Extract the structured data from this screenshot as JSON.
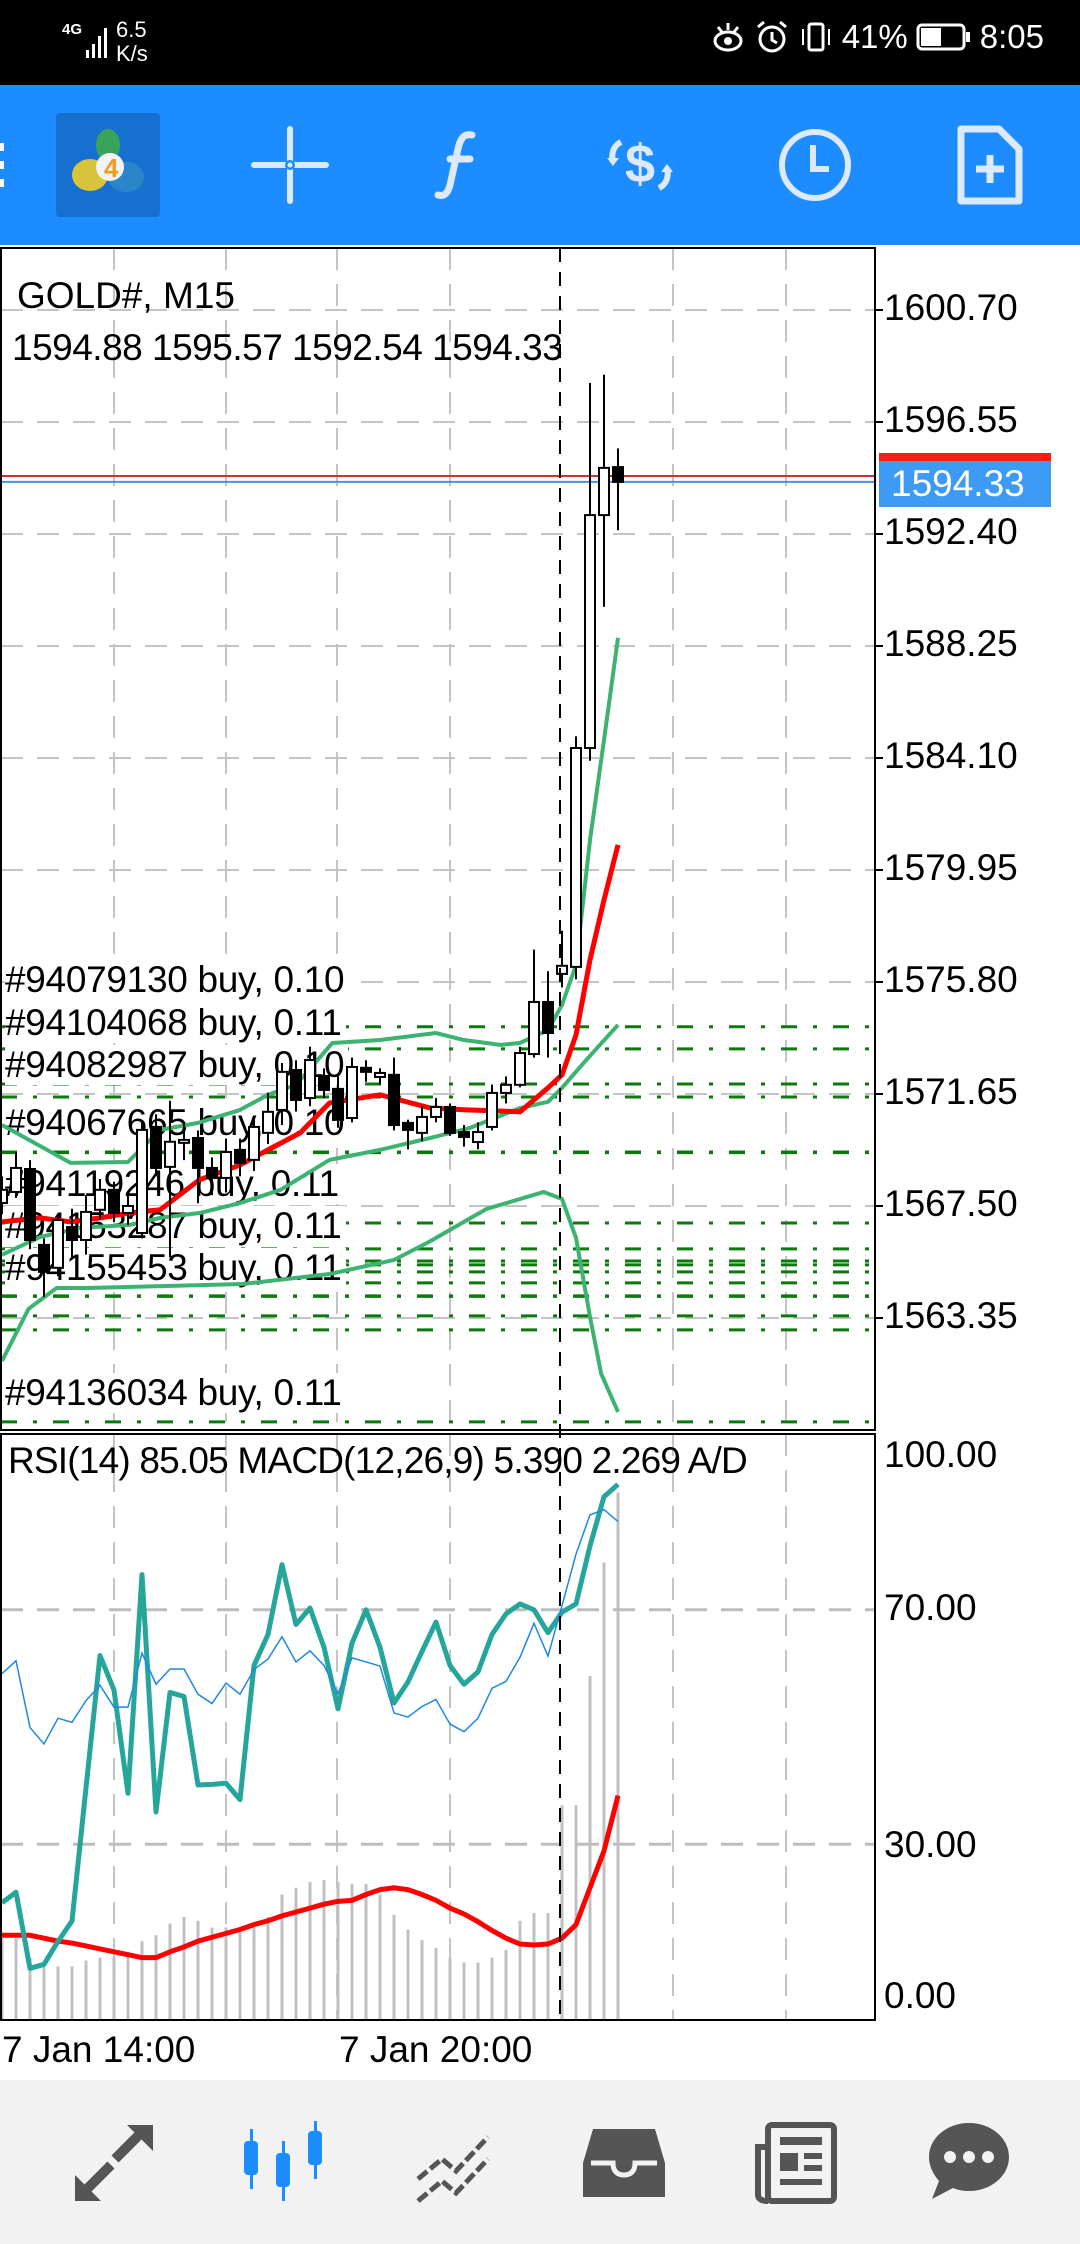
{
  "status_bar": {
    "network": "4G",
    "speed_value": "6.5",
    "speed_unit": "K/s",
    "battery": "41%",
    "time": "8:05"
  },
  "toolbar": {
    "icons": [
      "menu-icon",
      "mt4-logo",
      "crosshair-icon",
      "indicators-icon",
      "trade-icon",
      "timeframe-clock-icon",
      "new-object-icon"
    ]
  },
  "chart": {
    "symbol_title": "GOLD#, M15",
    "ohlc_line": "1594.88 1595.57 1592.54 1594.33",
    "current_price": "1594.33",
    "price_ticks": [
      "1600.70",
      "1596.55",
      "1592.40",
      "1588.25",
      "1584.10",
      "1579.95",
      "1575.80",
      "1571.65",
      "1567.50",
      "1563.35"
    ],
    "order_labels": [
      "#94079130 buy, 0.10",
      "#94104068 buy, 0.11",
      "#94082987 buy, 0.10",
      "#94067665 buy, 0.10",
      "#94119246 buy, 0.11",
      "#94153287 buy, 0.11",
      "#94155453 buy, 0.11",
      "#94136034 buy, 0.11"
    ],
    "indicator_header": "RSI(14) 85.05 MACD(12,26,9) 5.390 2.269 A/D",
    "indicator_ticks": [
      "100.00",
      "70.00",
      "30.00",
      "0.00"
    ],
    "time_labels": [
      "7 Jan 14:00",
      "7 Jan 20:00"
    ]
  },
  "chart_data": {
    "type": "candlestick",
    "title": "GOLD#, M15",
    "ylim": [
      1559.5,
      1601.5
    ],
    "price_ticks": [
      1600.7,
      1596.55,
      1592.4,
      1588.25,
      1584.1,
      1579.95,
      1575.8,
      1571.65,
      1567.5,
      1563.35
    ],
    "bid": 1594.33,
    "ask": 1594.55,
    "candles_ohlc": [
      [
        1567.61,
        1568.6,
        1567.2,
        1568.1
      ],
      [
        1568.02,
        1569.5,
        1567.8,
        1568.91
      ],
      [
        1568.87,
        1569.2,
        1565.9,
        1566.24
      ],
      [
        1566.06,
        1566.3,
        1564.13,
        1565.06
      ],
      [
        1565.21,
        1567.2,
        1564.9,
        1566.98
      ],
      [
        1566.72,
        1567.4,
        1565.6,
        1566.24
      ],
      [
        1566.24,
        1567.9,
        1565.7,
        1567.28
      ],
      [
        1567.36,
        1568.5,
        1567.0,
        1568.1
      ],
      [
        1568.1,
        1568.4,
        1566.9,
        1567.24
      ],
      [
        1567.24,
        1567.9,
        1566.8,
        1567.5
      ],
      [
        1566.5,
        1570.6,
        1566.3,
        1570.32
      ],
      [
        1570.43,
        1570.9,
        1568.6,
        1568.91
      ],
      [
        1568.95,
        1571.4,
        1565.6,
        1569.88
      ],
      [
        1569.84,
        1570.6,
        1569.2,
        1569.95
      ],
      [
        1570.02,
        1570.3,
        1567.6,
        1568.91
      ],
      [
        1568.91,
        1569.3,
        1567.9,
        1568.54
      ],
      [
        1568.54,
        1570.0,
        1568.0,
        1569.5
      ],
      [
        1569.58,
        1570.0,
        1568.6,
        1569.1
      ],
      [
        1569.21,
        1570.8,
        1568.8,
        1570.43
      ],
      [
        1570.21,
        1571.7,
        1569.8,
        1570.99
      ],
      [
        1571.06,
        1572.8,
        1570.5,
        1572.47
      ],
      [
        1572.54,
        1572.9,
        1571.0,
        1571.43
      ],
      [
        1571.5,
        1573.4,
        1571.2,
        1572.91
      ],
      [
        1572.32,
        1572.6,
        1571.5,
        1571.8
      ],
      [
        1571.84,
        1572.3,
        1570.4,
        1570.69
      ],
      [
        1570.76,
        1573.0,
        1570.6,
        1572.65
      ],
      [
        1572.62,
        1572.9,
        1572.1,
        1572.47
      ],
      [
        1572.28,
        1572.6,
        1572.0,
        1572.43
      ],
      [
        1572.36,
        1573.0,
        1570.3,
        1570.5
      ],
      [
        1570.58,
        1570.7,
        1569.6,
        1570.32
      ],
      [
        1570.21,
        1571.2,
        1569.9,
        1570.8
      ],
      [
        1570.8,
        1571.5,
        1570.6,
        1571.17
      ],
      [
        1571.17,
        1571.3,
        1570.1,
        1570.21
      ],
      [
        1570.24,
        1570.5,
        1569.7,
        1570.06
      ],
      [
        1569.87,
        1570.6,
        1569.6,
        1570.24
      ],
      [
        1570.43,
        1572.0,
        1570.3,
        1571.69
      ],
      [
        1571.69,
        1572.3,
        1571.3,
        1571.99
      ],
      [
        1571.99,
        1573.4,
        1571.9,
        1573.17
      ],
      [
        1573.13,
        1577.0,
        1573.0,
        1575.06
      ],
      [
        1575.06,
        1576.2,
        1573.0,
        1573.91
      ],
      [
        1576.1,
        1577.7,
        1575.6,
        1576.4
      ],
      [
        1576.36,
        1584.9,
        1575.9,
        1584.47
      ],
      [
        1584.47,
        1598.0,
        1584.0,
        1593.1
      ],
      [
        1593.1,
        1598.3,
        1589.7,
        1594.85
      ],
      [
        1594.88,
        1595.57,
        1592.54,
        1594.33
      ]
    ],
    "upper_band": [
      [
        0,
        1570.5
      ],
      [
        4.9,
        1569.1
      ],
      [
        9,
        1569.13
      ],
      [
        11.3,
        1570.32
      ],
      [
        14,
        1570.58
      ],
      [
        17,
        1571.06
      ],
      [
        19,
        1571.62
      ],
      [
        21,
        1571.99
      ],
      [
        23.6,
        1573.54
      ],
      [
        27,
        1573.65
      ],
      [
        31,
        1573.91
      ],
      [
        33,
        1573.65
      ],
      [
        35.6,
        1573.47
      ],
      [
        37,
        1573.54
      ],
      [
        39,
        1574.02
      ],
      [
        40,
        1574.95
      ],
      [
        41,
        1576.43
      ],
      [
        42,
        1581.06
      ],
      [
        43,
        1584.77
      ],
      [
        44,
        1588.55
      ]
    ],
    "moving_average": [
      [
        0,
        1566.91
      ],
      [
        2.7,
        1567.06
      ],
      [
        4.9,
        1566.91
      ],
      [
        7,
        1567.06
      ],
      [
        9.1,
        1567.24
      ],
      [
        11.3,
        1567.36
      ],
      [
        14.1,
        1568.47
      ],
      [
        17,
        1569.02
      ],
      [
        19,
        1569.58
      ],
      [
        21.3,
        1570.21
      ],
      [
        23.4,
        1571.32
      ],
      [
        27,
        1571.62
      ],
      [
        30.6,
        1571.13
      ],
      [
        33.2,
        1571.06
      ],
      [
        37,
        1570.99
      ],
      [
        39,
        1571.88
      ],
      [
        40,
        1572.36
      ],
      [
        41,
        1573.84
      ],
      [
        42,
        1576.62
      ],
      [
        43,
        1578.84
      ],
      [
        44,
        1580.88
      ]
    ],
    "lower_band": [
      [
        0,
        1565.69
      ],
      [
        2.7,
        1566.35
      ],
      [
        5.6,
        1566.69
      ],
      [
        9.1,
        1566.8
      ],
      [
        11.3,
        1567.06
      ],
      [
        14.1,
        1567.24
      ],
      [
        17,
        1567.61
      ],
      [
        19.9,
        1568.1
      ],
      [
        23.4,
        1569.21
      ],
      [
        27,
        1569.58
      ],
      [
        30.6,
        1570.02
      ],
      [
        33.4,
        1570.39
      ],
      [
        37,
        1571.13
      ],
      [
        39,
        1571.36
      ],
      [
        40,
        1571.88
      ],
      [
        41.8,
        1572.95
      ],
      [
        44,
        1574.21
      ]
    ],
    "envelope_line": [
      [
        0,
        1561.76
      ],
      [
        1.9,
        1563.69
      ],
      [
        3.9,
        1564.46
      ],
      [
        6,
        1564.46
      ],
      [
        17.2,
        1564.61
      ],
      [
        23.4,
        1564.98
      ],
      [
        28,
        1565.5
      ],
      [
        30.5,
        1566.17
      ],
      [
        34.6,
        1567.39
      ],
      [
        38.7,
        1568.02
      ],
      [
        40,
        1567.76
      ],
      [
        41,
        1566.32
      ],
      [
        42,
        1563.39
      ],
      [
        42.8,
        1561.28
      ],
      [
        44,
        1559.87
      ]
    ],
    "order_line_prices": [
      1574.14,
      1573.32,
      1572.02,
      1571.54,
      1569.5,
      1569.48,
      1566.87,
      1565.91,
      1565.46,
      1565.32,
      1565.06,
      1564.65,
      1564.17,
      1564.15,
      1563.43,
      1562.91,
      1559.5
    ],
    "indicators": {
      "rsi_14": [
        59.1,
        61.3,
        49.9,
        47.1,
        51.5,
        50.8,
        54.5,
        57.1,
        53.4,
        53.4,
        62.6,
        57.3,
        59.9,
        59.9,
        55.6,
        54,
        57.5,
        55.6,
        59.8,
        61.6,
        65.4,
        61.1,
        63,
        60.5,
        55.7,
        61.8,
        61.1,
        60.4,
        52.4,
        51.7,
        53.5,
        54.7,
        50.5,
        49.2,
        51.5,
        56.6,
        57.8,
        61.9,
        67.7,
        62.1,
        70.7,
        79.5,
        86.2,
        87.1,
        85.05
      ],
      "ad_scaled": [
        20,
        21.8,
        8.8,
        9.5,
        13.4,
        16.9,
        39.6,
        62.2,
        56.3,
        38.7,
        76,
        35.5,
        55.9,
        55.2,
        40.1,
        40.2,
        40.4,
        37.6,
        60.5,
        65.8,
        77.7,
        67.5,
        70.3,
        63.6,
        53.1,
        64.3,
        70,
        63.6,
        54.1,
        57.7,
        62.9,
        67.9,
        60.5,
        57.3,
        59.4,
        65.8,
        69.3,
        71,
        70,
        66.1,
        69.6,
        71,
        80.9,
        89.3,
        91.4
      ],
      "macd_main": [
        0.8,
        0.8,
        0.6,
        0.55,
        0.51,
        0.51,
        0.57,
        0.6,
        0.6,
        0.66,
        0.77,
        0.83,
        0.95,
        1.02,
        0.98,
        0.91,
        0.91,
        0.89,
        0.91,
        1.02,
        1.25,
        1.32,
        1.38,
        1.4,
        1.38,
        1.36,
        1.36,
        1.25,
        1.04,
        0.89,
        0.78,
        0.7,
        0.6,
        0.55,
        0.55,
        0.6,
        0.68,
        0.98,
        1.06,
        1.06,
        2.17,
        2.17,
        3.5,
        4.67,
        5.39
      ],
      "macd_signal": [
        0.83,
        0.83,
        0.83,
        0.8,
        0.77,
        0.75,
        0.72,
        0.69,
        0.66,
        0.63,
        0.6,
        0.6,
        0.66,
        0.71,
        0.77,
        0.81,
        0.85,
        0.89,
        0.94,
        0.98,
        1.03,
        1.07,
        1.11,
        1.15,
        1.18,
        1.19,
        1.25,
        1.3,
        1.32,
        1.3,
        1.25,
        1.19,
        1.11,
        1.05,
        0.97,
        0.88,
        0.8,
        0.74,
        0.73,
        0.74,
        0.8,
        0.94,
        1.32,
        1.7,
        2.269
      ],
      "rsi_levels": [
        70,
        30
      ],
      "ylim": [
        0,
        100
      ]
    },
    "x_labels": [
      "7 Jan 14:00",
      "7 Jan 20:00"
    ],
    "colors": {
      "bands": "#3cb371",
      "ma": "#ff0000",
      "rsi": "#1e88e5",
      "ad": "#26a69a",
      "macd_hist": "#c0c0c0",
      "orders": "#0b7a0b",
      "ask_line": "#d32f2f",
      "bid_line": "#4a90e2"
    }
  },
  "bottom_nav": {
    "items": [
      "trade-arrows-icon",
      "chart-candles-icon",
      "trend-lines-icon",
      "trade-inbox-icon",
      "news-icon",
      "chat-icon"
    ],
    "active_color": "#1c8cff"
  }
}
